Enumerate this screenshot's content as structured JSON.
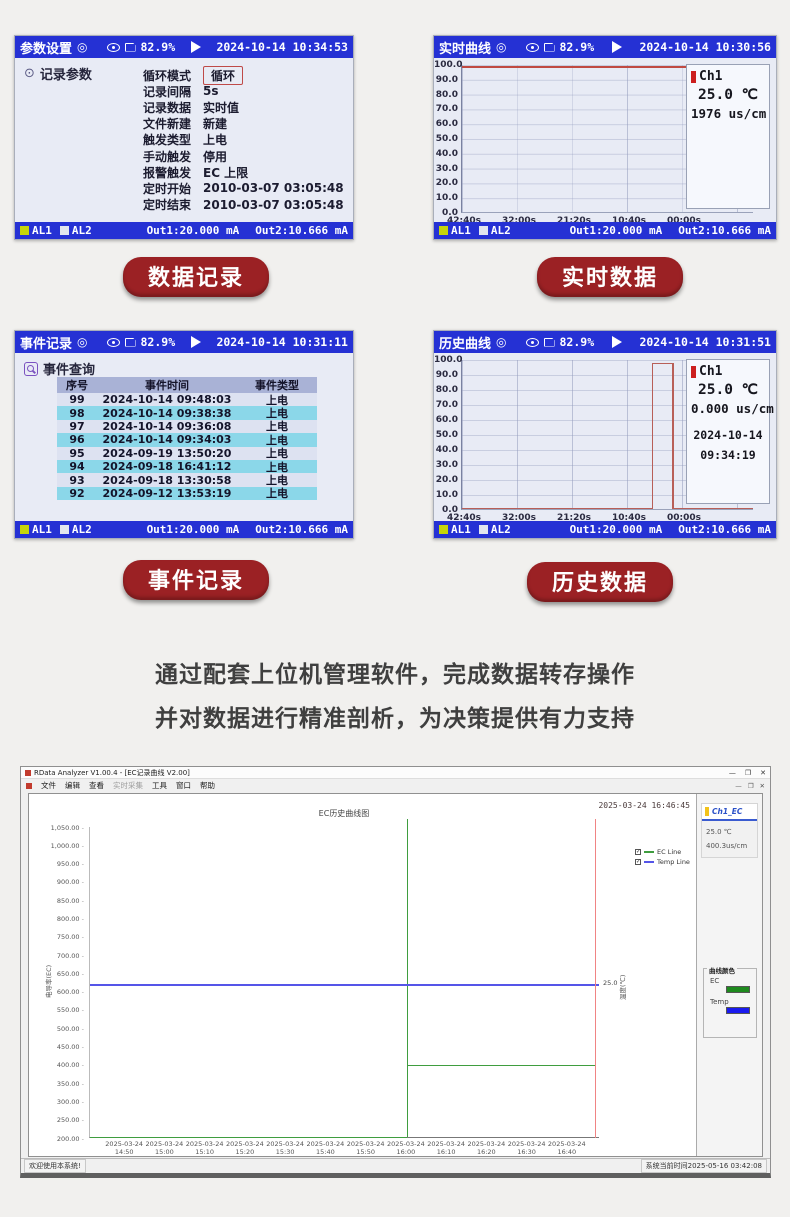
{
  "page": {
    "paragraph_line1": "通过配套上位机管理软件，完成数据转存操作",
    "paragraph_line2": "并对数据进行精准剖析，为决策提供有力支持"
  },
  "labels": {
    "pill1": "数据记录",
    "pill2": "实时数据",
    "pill3": "事件记录",
    "pill4": "历史数据"
  },
  "common": {
    "battery": "82.9%",
    "al1": "AL1",
    "al2": "AL2",
    "out1": "Out1:20.000 mA",
    "out2": "Out2:10.666 mA"
  },
  "panel1": {
    "title": "参数设置",
    "datetime": "2024-10-14 10:34:53",
    "section": "记录参数",
    "params": [
      {
        "label": "循环模式",
        "value": "循环",
        "boxed": true
      },
      {
        "label": "记录间隔",
        "value": "5s"
      },
      {
        "label": "记录数据",
        "value": "实时值"
      },
      {
        "label": "文件新建",
        "value": "新建"
      },
      {
        "label": "触发类型",
        "value": "上电"
      },
      {
        "label": "手动触发",
        "value": "停用"
      },
      {
        "label": "报警触发",
        "value": "EC  上限"
      },
      {
        "label": "定时开始",
        "value": "2010-03-07 03:05:48"
      },
      {
        "label": "定时结束",
        "value": "2010-03-07 03:05:48"
      }
    ]
  },
  "panel2": {
    "title": "实时曲线",
    "datetime": "2024-10-14 10:30:56",
    "info": {
      "channel": "Ch1",
      "temp": "25.0 ℃",
      "ec": "1976 us/cm"
    }
  },
  "panel3": {
    "title": "事件记录",
    "datetime": "2024-10-14 10:31:11",
    "section": "事件查询",
    "table": {
      "headers": [
        "序号",
        "事件时间",
        "事件类型"
      ],
      "rows": [
        [
          "99",
          "2024-10-14 09:48:03",
          "上电"
        ],
        [
          "98",
          "2024-10-14 09:38:38",
          "上电"
        ],
        [
          "97",
          "2024-10-14 09:36:08",
          "上电"
        ],
        [
          "96",
          "2024-10-14 09:34:03",
          "上电"
        ],
        [
          "95",
          "2024-09-19 13:50:20",
          "上电"
        ],
        [
          "94",
          "2024-09-18 16:41:12",
          "上电"
        ],
        [
          "93",
          "2024-09-18 13:30:58",
          "上电"
        ],
        [
          "92",
          "2024-09-12 13:53:19",
          "上电"
        ]
      ]
    }
  },
  "panel4": {
    "title": "历史曲线",
    "datetime": "2024-10-14 10:31:51",
    "info": {
      "channel": "Ch1",
      "temp": "25.0 ℃",
      "ec": "0.000 us/cm",
      "date": "2024-10-14",
      "time": "09:34:19"
    }
  },
  "app": {
    "title": "RData Analyzer V1.00.4 - [EC记录曲线 V2.00]",
    "menus": [
      {
        "label": "文件",
        "enabled": true
      },
      {
        "label": "编辑",
        "enabled": true
      },
      {
        "label": "查看",
        "enabled": true
      },
      {
        "label": "实时采集",
        "enabled": false
      },
      {
        "label": "工具",
        "enabled": true
      },
      {
        "label": "窗口",
        "enabled": true
      },
      {
        "label": "帮助",
        "enabled": true
      }
    ],
    "controls": {
      "minimize": "—",
      "maximize": "❐",
      "close": "✕"
    },
    "sidebar": {
      "channel": "Ch1_EC",
      "temp": "25.0 ℃",
      "ec": "400.3us/cm",
      "colors_title": "曲线颜色",
      "colors": [
        {
          "name": "EC",
          "color": "#1e8a1e"
        },
        {
          "name": "Temp",
          "color": "#1a1aee"
        }
      ]
    },
    "status_left": "欢迎使用本系统!",
    "status_right": "系统当前时间2025-05-16 03:42:08"
  },
  "chart_data": [
    {
      "id": "realtime-curve",
      "type": "line",
      "title": "实时曲线",
      "ylim": [
        0,
        100
      ],
      "y_ticks": [
        "100.0",
        "90.0",
        "80.0",
        "70.0",
        "60.0",
        "50.0",
        "40.0",
        "30.0",
        "20.0",
        "10.0",
        "0.0"
      ],
      "x_ticks": [
        "42:40s",
        "32:00s",
        "21:20s",
        "10:40s",
        "00:00s"
      ],
      "series": [
        {
          "name": "Ch1",
          "color": "#c04a42",
          "shape": "constant",
          "value": 99,
          "note": "flat line near full-scale across entire window"
        }
      ],
      "grid": true,
      "legend_position": "none"
    },
    {
      "id": "history-curve",
      "type": "line",
      "title": "历史曲线",
      "ylim": [
        0,
        100
      ],
      "y_ticks": [
        "100.0",
        "90.0",
        "80.0",
        "70.0",
        "60.0",
        "50.0",
        "40.0",
        "30.0",
        "20.0",
        "10.0",
        "0.0"
      ],
      "x_ticks": [
        "42:40s",
        "32:00s",
        "21:20s",
        "10:40s",
        "00:00s"
      ],
      "series": [
        {
          "name": "Ch1",
          "color": "#b85f58",
          "shape": "pulse",
          "baseline": 0,
          "peak": 98,
          "pulse_start_pct": 65,
          "pulse_end_pct": 72,
          "note": "signal at 0 with one tall narrow pulse near right side"
        }
      ],
      "grid": true,
      "legend_position": "none"
    },
    {
      "id": "ec-history",
      "type": "line",
      "title": "EC历史曲线图",
      "timestamp": "2025-03-24 16:46:45",
      "ylabel_left": "电导率(EC)",
      "ylabel_right": "温度(℃)",
      "ylim_left": [
        200,
        1050
      ],
      "y_ticks_left": [
        "1,050.00",
        "1,000.00",
        "950.00",
        "900.00",
        "850.00",
        "800.00",
        "750.00",
        "700.00",
        "650.00",
        "600.00",
        "550.00",
        "500.00",
        "450.00",
        "400.00",
        "350.00",
        "300.00",
        "250.00",
        "200.00"
      ],
      "x_date": "2025-03-24",
      "x_times": [
        "14:50",
        "15:00",
        "15:10",
        "15:20",
        "15:30",
        "15:40",
        "15:50",
        "16:00",
        "16:10",
        "16:20",
        "16:30",
        "16:40"
      ],
      "legend": [
        {
          "label": "EC Line",
          "color": "#3f9d3f",
          "checked": true
        },
        {
          "label": "Temp Line",
          "color": "#5555e8",
          "checked": true
        }
      ],
      "legend_position": "right of plot, upper",
      "grid": false,
      "series": [
        {
          "name": "EC Line",
          "axis": "left",
          "color": "#3f9d3f",
          "segments": [
            {
              "from_time": "14:45",
              "to_time": "16:00",
              "value": 200
            },
            {
              "at_time": "16:00",
              "type": "vertical-step-spike"
            },
            {
              "from_time": "16:00",
              "to_time": "16:45",
              "value": 400
            }
          ]
        },
        {
          "name": "Temp Line",
          "axis": "right",
          "color": "#5555e8",
          "value": 25.0,
          "left_axis_equivalent": 620,
          "right_tick_label": "25.0"
        }
      ],
      "cursor": {
        "time": "16:45",
        "color": "#f08484"
      }
    }
  ]
}
